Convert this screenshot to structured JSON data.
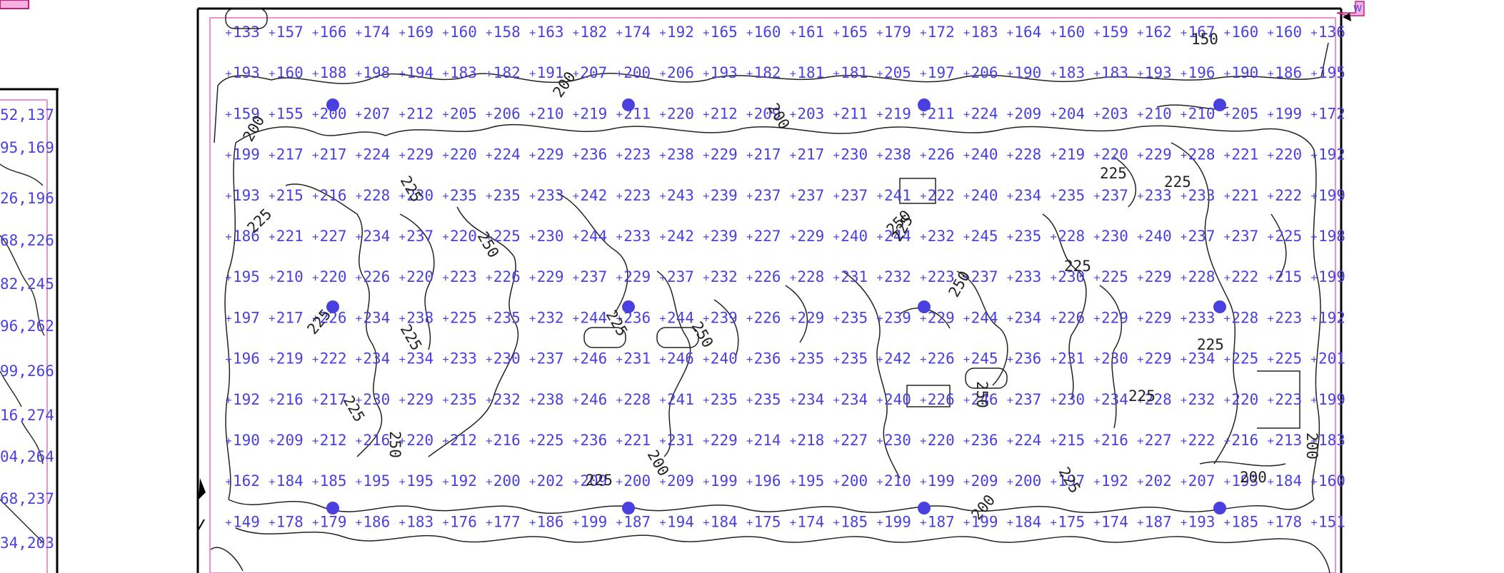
{
  "left_panel": {
    "rows": [
      "52,137",
      "95,169",
      "26,196",
      "68,226",
      "82,245",
      "96,262",
      "99,266",
      "16,274",
      "04,264",
      "68,237",
      "34,203"
    ]
  },
  "corner_tag": "W",
  "grid": {
    "rows": [
      [
        133,
        157,
        166,
        174,
        169,
        160,
        158,
        163,
        182,
        174,
        192,
        165,
        160,
        161,
        165,
        179,
        172,
        183,
        164,
        160,
        159,
        162,
        167,
        160,
        160,
        136
      ],
      [
        193,
        160,
        188,
        198,
        194,
        183,
        182,
        191,
        207,
        200,
        206,
        193,
        182,
        181,
        181,
        205,
        197,
        206,
        190,
        183,
        183,
        193,
        196,
        190,
        186,
        195
      ],
      [
        159,
        155,
        200,
        207,
        212,
        205,
        206,
        210,
        219,
        211,
        220,
        212,
        209,
        203,
        211,
        219,
        211,
        224,
        209,
        204,
        203,
        210,
        210,
        205,
        199,
        172
      ],
      [
        199,
        217,
        217,
        224,
        229,
        220,
        224,
        229,
        236,
        223,
        238,
        229,
        217,
        217,
        230,
        238,
        226,
        240,
        228,
        219,
        220,
        229,
        228,
        221,
        220,
        192
      ],
      [
        193,
        215,
        216,
        228,
        230,
        235,
        235,
        233,
        242,
        223,
        243,
        239,
        237,
        237,
        237,
        241,
        222,
        240,
        234,
        235,
        237,
        233,
        233,
        221,
        222,
        199
      ],
      [
        186,
        221,
        227,
        234,
        237,
        220,
        225,
        230,
        244,
        233,
        242,
        239,
        227,
        229,
        240,
        244,
        232,
        245,
        235,
        228,
        230,
        240,
        237,
        237,
        225,
        198
      ],
      [
        195,
        210,
        220,
        226,
        220,
        223,
        226,
        229,
        237,
        229,
        237,
        232,
        226,
        228,
        231,
        232,
        223,
        237,
        233,
        230,
        225,
        229,
        228,
        222,
        215,
        199
      ],
      [
        197,
        217,
        226,
        234,
        238,
        225,
        235,
        232,
        244,
        236,
        244,
        239,
        226,
        229,
        235,
        239,
        229,
        244,
        234,
        226,
        229,
        229,
        233,
        228,
        223,
        192
      ],
      [
        196,
        219,
        222,
        234,
        234,
        233,
        230,
        237,
        246,
        231,
        246,
        240,
        236,
        235,
        235,
        242,
        226,
        245,
        236,
        231,
        230,
        229,
        234,
        225,
        225,
        201
      ],
      [
        192,
        216,
        217,
        230,
        229,
        235,
        232,
        238,
        246,
        228,
        241,
        235,
        235,
        234,
        234,
        240,
        226,
        246,
        237,
        230,
        234,
        228,
        232,
        220,
        223,
        199
      ],
      [
        190,
        209,
        212,
        216,
        220,
        212,
        216,
        225,
        236,
        221,
        231,
        229,
        214,
        218,
        227,
        230,
        220,
        236,
        224,
        215,
        216,
        227,
        222,
        216,
        213,
        183
      ],
      [
        162,
        184,
        185,
        195,
        195,
        192,
        200,
        202,
        209,
        200,
        209,
        199,
        196,
        195,
        200,
        210,
        199,
        209,
        200,
        197,
        192,
        202,
        207,
        193,
        184,
        160
      ],
      [
        149,
        178,
        179,
        186,
        183,
        176,
        177,
        186,
        199,
        187,
        194,
        184,
        175,
        174,
        185,
        199,
        187,
        199,
        184,
        175,
        174,
        187,
        193,
        185,
        178,
        151
      ]
    ]
  },
  "contour_labels": [
    {
      "text": "150",
      "ang": 0
    },
    {
      "text": "200",
      "ang": -60
    },
    {
      "text": "200",
      "ang": -55
    },
    {
      "text": "200",
      "ang": 60
    },
    {
      "text": "225",
      "ang": 0
    },
    {
      "text": "225",
      "ang": 60
    },
    {
      "text": "225",
      "ang": -45
    },
    {
      "text": "225",
      "ang": 0
    },
    {
      "text": "225",
      "ang": 60
    },
    {
      "text": "225",
      "ang": -60
    },
    {
      "text": "225",
      "ang": 0
    },
    {
      "text": "225",
      "ang": 0
    },
    {
      "text": "225",
      "ang": 60
    },
    {
      "text": "250",
      "ang": 60
    },
    {
      "text": "250",
      "ang": -45
    },
    {
      "text": "250",
      "ang": 60
    },
    {
      "text": "250",
      "ang": -60
    },
    {
      "text": "250",
      "ang": 90
    },
    {
      "text": "250",
      "ang": 90
    },
    {
      "text": "200",
      "ang": 60
    },
    {
      "text": "200",
      "ang": 0
    },
    {
      "text": "200",
      "ang": 90
    },
    {
      "text": "225",
      "ang": 60
    },
    {
      "text": "225",
      "ang": -50
    },
    {
      "text": "225",
      "ang": 60
    },
    {
      "text": "200",
      "ang": -50
    },
    {
      "text": "225",
      "ang": 0
    },
    {
      "text": "225",
      "ang": 0
    }
  ],
  "circled_values": [
    "133",
    "246",
    "246",
    "246"
  ],
  "colors": {
    "values": "#4a40e0",
    "border": "#f090d0",
    "frame": "#000000",
    "fixture": "#4a40e0"
  }
}
